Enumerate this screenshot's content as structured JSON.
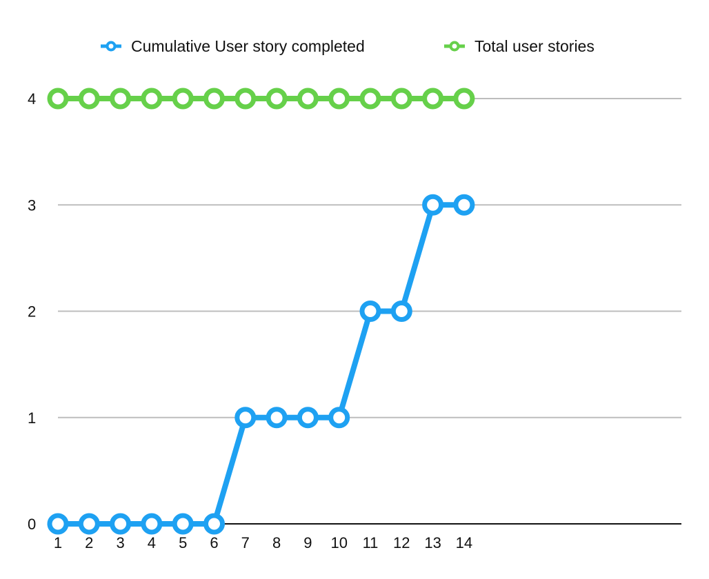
{
  "chart_data": {
    "type": "line",
    "title": "",
    "xlabel": "",
    "ylabel": "",
    "x": [
      "1",
      "2",
      "3",
      "4",
      "5",
      "6",
      "7",
      "8",
      "9",
      "10",
      "11",
      "12",
      "13",
      "14"
    ],
    "ylim": [
      0,
      4
    ],
    "yticks": [
      "0",
      "1",
      "2",
      "3",
      "4"
    ],
    "grid": true,
    "legend_position": "top",
    "series": [
      {
        "name": "Cumulative User story completed",
        "color": "#1ea1f2",
        "values": [
          0,
          0,
          0,
          0,
          0,
          0,
          1,
          1,
          1,
          1,
          2,
          2,
          3,
          3
        ]
      },
      {
        "name": "Total user stories",
        "color": "#66d04a",
        "values": [
          4,
          4,
          4,
          4,
          4,
          4,
          4,
          4,
          4,
          4,
          4,
          4,
          4,
          4
        ]
      }
    ]
  }
}
